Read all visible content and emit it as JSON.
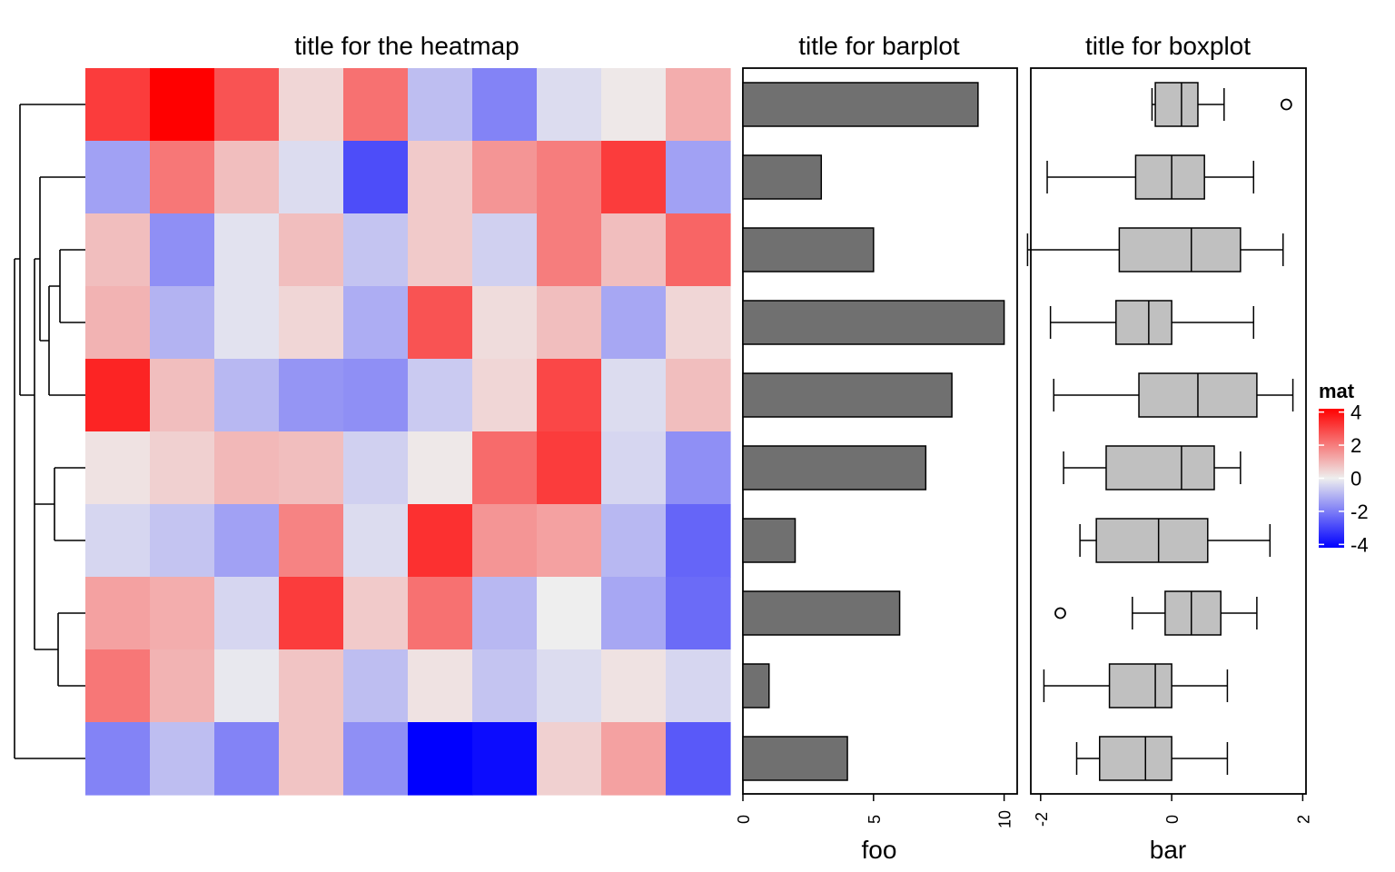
{
  "chart_data": [
    {
      "type": "heatmap",
      "title": "title for the heatmap",
      "rows": 10,
      "cols": 10,
      "values": [
        [
          3.0,
          4.1,
          2.6,
          0.4,
          2.1,
          -0.8,
          -1.8,
          -0.3,
          0.1,
          1.1
        ],
        [
          -1.3,
          2.0,
          0.8,
          -0.3,
          -2.7,
          0.6,
          1.5,
          1.9,
          3.0,
          -1.3
        ],
        [
          0.8,
          -1.6,
          -0.2,
          0.8,
          -0.7,
          0.6,
          -0.5,
          1.9,
          0.8,
          2.3
        ],
        [
          1.0,
          -1.0,
          -0.2,
          0.4,
          -1.1,
          2.6,
          0.3,
          0.8,
          -1.2,
          0.4
        ],
        [
          3.4,
          0.8,
          -0.9,
          -1.5,
          -1.6,
          -0.6,
          0.4,
          2.8,
          -0.3,
          0.8
        ],
        [
          0.2,
          0.5,
          0.9,
          0.8,
          -0.5,
          0.1,
          2.2,
          3.0,
          -0.4,
          -1.6
        ],
        [
          -0.4,
          -0.7,
          -1.3,
          1.8,
          -0.3,
          3.2,
          1.5,
          1.3,
          -0.9,
          -2.3
        ],
        [
          1.3,
          1.1,
          -0.4,
          3.0,
          0.6,
          2.1,
          -0.9,
          0.0,
          -1.2,
          -2.2
        ],
        [
          2.0,
          1.0,
          -0.1,
          0.7,
          -0.8,
          0.2,
          -0.7,
          -0.3,
          0.2,
          -0.4
        ],
        [
          -1.8,
          -0.8,
          -1.8,
          0.7,
          -1.6,
          -4.2,
          -3.8,
          0.5,
          1.3,
          -2.5
        ]
      ],
      "colors": {
        "low": "#0000ff",
        "mid": "#eeeeee",
        "high": "#ff0000"
      },
      "row_dendrogram": true
    },
    {
      "type": "bar",
      "title": "title for barplot",
      "xlabel": "foo",
      "orientation": "horizontal",
      "values": [
        9,
        3,
        5,
        10,
        8,
        7,
        2,
        6,
        1,
        4
      ],
      "xlim": [
        0,
        10.5
      ],
      "ticks": [
        "0",
        "5",
        "10"
      ],
      "fill": "#707070"
    },
    {
      "type": "boxplot",
      "title": "title for boxplot",
      "xlabel": "bar",
      "orientation": "horizontal",
      "xlim": [
        -2.15,
        2.05
      ],
      "ticks": [
        "-2",
        "0",
        "2"
      ],
      "fill": "#c0c0c0",
      "boxes": [
        {
          "wlo": -0.3,
          "q1": -0.25,
          "med": 0.15,
          "q3": 0.4,
          "whi": 0.8,
          "outliers": [
            1.75
          ]
        },
        {
          "wlo": -1.9,
          "q1": -0.55,
          "med": 0.0,
          "q3": 0.5,
          "whi": 1.25,
          "outliers": []
        },
        {
          "wlo": -2.2,
          "q1": -0.8,
          "med": 0.3,
          "q3": 1.05,
          "whi": 1.7,
          "outliers": []
        },
        {
          "wlo": -1.85,
          "q1": -0.85,
          "med": -0.35,
          "q3": 0.0,
          "whi": 1.25,
          "outliers": []
        },
        {
          "wlo": -1.8,
          "q1": -0.5,
          "med": 0.4,
          "q3": 1.3,
          "whi": 1.85,
          "outliers": []
        },
        {
          "wlo": -1.65,
          "q1": -1.0,
          "med": 0.15,
          "q3": 0.65,
          "whi": 1.05,
          "outliers": []
        },
        {
          "wlo": -1.4,
          "q1": -1.15,
          "med": -0.2,
          "q3": 0.55,
          "whi": 1.5,
          "outliers": []
        },
        {
          "wlo": -0.6,
          "q1": -0.1,
          "med": 0.3,
          "q3": 0.75,
          "whi": 1.3,
          "outliers": [
            -1.7
          ]
        },
        {
          "wlo": -1.95,
          "q1": -0.95,
          "med": -0.25,
          "q3": 0.0,
          "whi": 0.85,
          "outliers": []
        },
        {
          "wlo": -1.45,
          "q1": -1.1,
          "med": -0.4,
          "q3": 0.0,
          "whi": 0.85,
          "outliers": []
        }
      ]
    }
  ],
  "legend": {
    "title": "mat",
    "ticks": [
      "4",
      "2",
      "0",
      "-2",
      "-4"
    ],
    "tick_values": [
      4,
      2,
      0,
      -2,
      -4
    ]
  }
}
